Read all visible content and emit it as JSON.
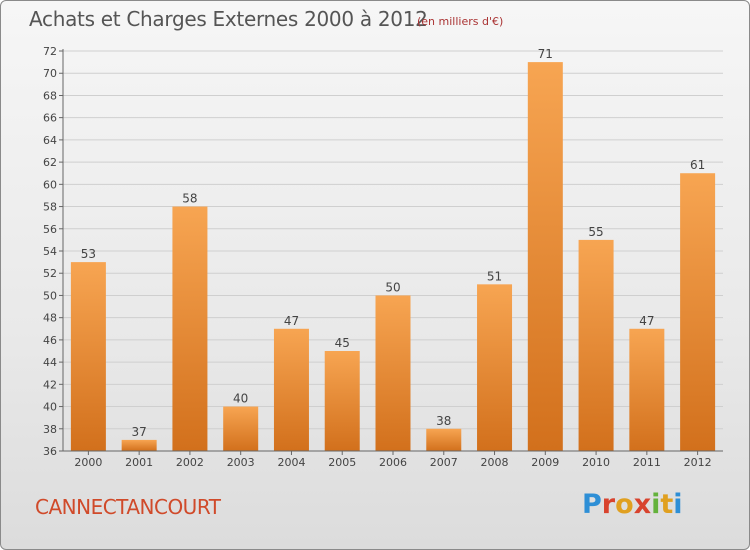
{
  "header": {
    "title": "Achats et Charges Externes 2000 à 2012",
    "subtitle": "(en milliers d'€)"
  },
  "footer": {
    "commune": "CANNECTANCOURT",
    "logo_letters": [
      "P",
      "r",
      "o",
      "x",
      "i",
      "t",
      "i"
    ],
    "logo_colors": [
      "#2e8fd6",
      "#d8432e",
      "#e0a020",
      "#d8432e",
      "#64b23c",
      "#e0a020",
      "#2e8fd6"
    ]
  },
  "chart_data": {
    "type": "bar",
    "categories": [
      "2000",
      "2001",
      "2002",
      "2003",
      "2004",
      "2005",
      "2006",
      "2007",
      "2008",
      "2009",
      "2010",
      "2011",
      "2012"
    ],
    "values": [
      53,
      37,
      58,
      40,
      47,
      45,
      50,
      38,
      51,
      71,
      55,
      47,
      61
    ],
    "ylim": [
      36,
      72
    ],
    "yticks": [
      36,
      38,
      40,
      42,
      44,
      46,
      48,
      50,
      52,
      54,
      56,
      58,
      60,
      62,
      64,
      66,
      68,
      70,
      72
    ],
    "grid": true,
    "colors": {
      "bar_top": "#f7a552",
      "bar_bottom": "#d2701c",
      "grid": "#cfcfcf",
      "axis": "#666666"
    }
  }
}
